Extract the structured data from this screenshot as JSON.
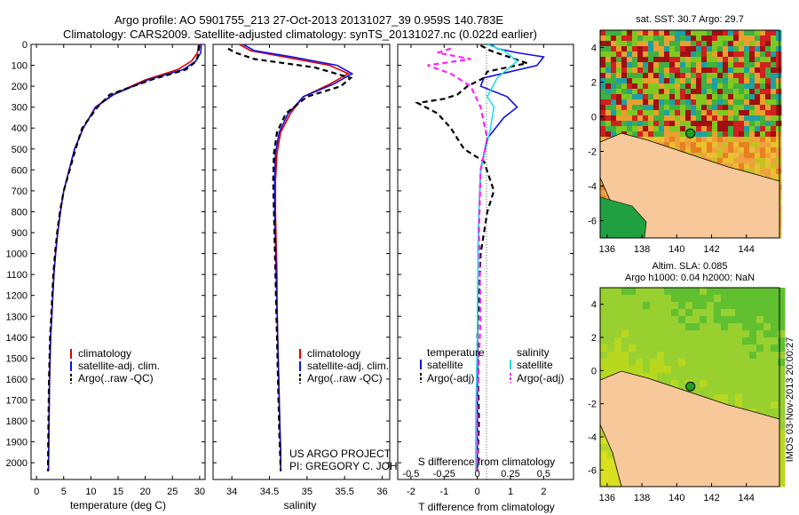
{
  "title_line1": "Argo profile: AO 5901755_213 27-Oct-2013 20131027_39 0.959S 140.783E",
  "title_line2": "Climatology: CARS2009. Satellite-adjusted climatology: synTS_20131027.nc (0.022d earlier)",
  "credit_line1": "US ARGO PROJECT",
  "credit_line2": "PI: GREGORY C. JOHNSON",
  "watermark": "IMOS 03-Nov-2013 20:00:27",
  "colors": {
    "climatology": "#e00000",
    "satellite": "#1010e0",
    "argo": "#000000",
    "sat_salinity": "#20e0e0",
    "argo_salinity": "#ff20ff"
  },
  "chart_data": [
    {
      "type": "line",
      "name": "temperature-panel",
      "xlabel": "temperature (deg C)",
      "ylabel": "",
      "xlim": [
        -1,
        31
      ],
      "ylim": [
        2080,
        0
      ],
      "xticks": [
        0,
        5,
        10,
        15,
        20,
        25,
        30
      ],
      "xtick_labels": [
        "0",
        "5",
        "10",
        "15",
        "20",
        "25",
        "30"
      ],
      "yticks": [
        0,
        100,
        200,
        300,
        400,
        500,
        600,
        700,
        800,
        900,
        1000,
        1100,
        1200,
        1300,
        1400,
        1500,
        1600,
        1700,
        1800,
        1900,
        2000
      ],
      "ytick_labels": [
        "0",
        "100",
        "200",
        "300",
        "400",
        "500",
        "600",
        "700",
        "800",
        "900",
        "1000",
        "1100",
        "1200",
        "1300",
        "1400",
        "1500",
        "1600",
        "1700",
        "1800",
        "1900",
        "2000"
      ],
      "legend": [
        "climatology",
        "satellite-adj. clim.",
        "Argo(..raw -QC)"
      ],
      "series": [
        {
          "name": "climatology",
          "style": "solid",
          "color_key": "climatology",
          "x": [
            29.8,
            29.6,
            28.5,
            26.0,
            20.0,
            14.0,
            10.8,
            8.6,
            7.0,
            6.0,
            5.0,
            4.4,
            3.9,
            3.5,
            3.2,
            3.0,
            2.8,
            2.6,
            2.5,
            2.4,
            2.3,
            2.2
          ],
          "y": [
            0,
            40,
            80,
            120,
            170,
            240,
            300,
            400,
            500,
            600,
            700,
            800,
            900,
            1000,
            1100,
            1200,
            1300,
            1400,
            1500,
            1600,
            1800,
            2040
          ]
        },
        {
          "name": "satellite-adj. clim.",
          "style": "solid",
          "color_key": "satellite",
          "x": [
            30.3,
            30.2,
            29.3,
            27.0,
            20.5,
            14.2,
            10.9,
            8.6,
            7.0,
            6.0,
            5.0,
            4.4,
            3.9,
            3.5,
            3.2,
            3.0,
            2.8,
            2.6,
            2.5,
            2.4,
            2.3,
            2.2
          ],
          "y": [
            0,
            40,
            80,
            120,
            170,
            240,
            300,
            400,
            500,
            600,
            700,
            800,
            900,
            1000,
            1100,
            1200,
            1300,
            1400,
            1500,
            1600,
            1800,
            2040
          ]
        },
        {
          "name": "Argo(..raw -QC)",
          "style": "dashed",
          "color_key": "argo",
          "x": [
            29.9,
            29.8,
            29.4,
            27.5,
            21.0,
            13.5,
            11.2,
            8.4,
            7.2,
            6.1,
            5.0,
            4.3,
            3.8,
            3.4,
            3.1,
            2.9,
            2.7,
            2.5,
            2.4,
            2.3,
            2.2,
            2.1
          ],
          "y": [
            5,
            40,
            80,
            120,
            170,
            240,
            300,
            400,
            500,
            600,
            700,
            800,
            900,
            1000,
            1100,
            1200,
            1300,
            1400,
            1500,
            1600,
            1800,
            2040
          ]
        }
      ]
    },
    {
      "type": "line",
      "name": "salinity-panel",
      "xlabel": "salinity",
      "xlim": [
        33.75,
        36.1
      ],
      "ylim": [
        2080,
        0
      ],
      "xticks": [
        34,
        34.5,
        35,
        35.5,
        36
      ],
      "xtick_labels": [
        "34",
        "34.5",
        "35",
        "35.5",
        "36"
      ],
      "legend": [
        "climatology",
        "satellite-adj. clim.",
        "Argo(..raw -QC)"
      ],
      "series": [
        {
          "name": "climatology",
          "style": "solid",
          "color_key": "climatology",
          "x": [
            34.1,
            34.25,
            34.7,
            35.3,
            35.55,
            35.3,
            34.95,
            34.78,
            34.65,
            34.6,
            34.58,
            34.58,
            34.59,
            34.6,
            34.6,
            34.61,
            34.62,
            34.63,
            34.64,
            34.65,
            34.65
          ],
          "y": [
            0,
            30,
            60,
            100,
            140,
            190,
            250,
            330,
            420,
            520,
            650,
            800,
            950,
            1100,
            1250,
            1400,
            1550,
            1700,
            1850,
            1950,
            2040
          ]
        },
        {
          "name": "satellite-adj. clim.",
          "style": "solid",
          "color_key": "satellite",
          "x": [
            34.15,
            34.3,
            34.8,
            35.4,
            35.6,
            35.35,
            34.95,
            34.75,
            34.63,
            34.58,
            34.57,
            34.57,
            34.58,
            34.59,
            34.6,
            34.61,
            34.62,
            34.63,
            34.64,
            34.65,
            34.65
          ],
          "y": [
            0,
            30,
            60,
            100,
            140,
            190,
            250,
            330,
            420,
            520,
            650,
            800,
            950,
            1100,
            1250,
            1400,
            1550,
            1700,
            1850,
            1950,
            2040
          ]
        },
        {
          "name": "Argo(..raw -QC)",
          "style": "dashed",
          "color_key": "argo",
          "x": [
            33.95,
            34.05,
            34.3,
            35.1,
            35.58,
            35.45,
            35.0,
            34.72,
            34.6,
            34.56,
            34.55,
            34.56,
            34.57,
            34.58,
            34.59,
            34.6,
            34.61,
            34.62,
            34.63,
            34.64,
            34.65
          ],
          "y": [
            20,
            40,
            70,
            110,
            160,
            200,
            250,
            330,
            420,
            520,
            650,
            800,
            950,
            1100,
            1250,
            1400,
            1550,
            1700,
            1850,
            1950,
            2040
          ]
        }
      ]
    },
    {
      "type": "line",
      "name": "difference-panel",
      "xlabel": "T difference from climatology",
      "xlabel_top": "S difference from climatology",
      "xlim": [
        -2.4,
        2.9
      ],
      "ylim": [
        2080,
        0
      ],
      "xticks": [
        -2,
        -1,
        0,
        1,
        2
      ],
      "xtick_labels": [
        "-2",
        "-1",
        "0",
        "1",
        "2"
      ],
      "sticks": [
        -2,
        -1,
        0,
        1,
        2
      ],
      "stick_labels": [
        "-0.5",
        "-0.25",
        "0",
        "0.25",
        "0.5"
      ],
      "legend": [
        "temperature",
        "satellite",
        "Argo(-adj)",
        "salinity",
        "satellite",
        "Argo(-adj)"
      ],
      "series": [
        {
          "name": "temperature satellite",
          "style": "solid",
          "color_key": "satellite",
          "x": [
            0.4,
            0.6,
            1.2,
            2.0,
            1.8,
            0.2,
            0.1,
            0.9,
            1.2,
            0.8,
            0.3,
            0.1,
            0.05,
            0.02,
            0.01,
            0.0,
            0.0
          ],
          "y": [
            0,
            20,
            40,
            60,
            100,
            160,
            200,
            250,
            300,
            350,
            450,
            600,
            800,
            1000,
            1400,
            1800,
            2040
          ]
        },
        {
          "name": "temperature Argo(-adj)",
          "style": "dashed",
          "color_key": "argo",
          "x": [
            0.1,
            0.4,
            1.5,
            0.3,
            0.2,
            -0.3,
            -0.6,
            -1.0,
            -1.8,
            -1.2,
            -0.8,
            -0.4,
            0.2,
            0.5,
            0.3,
            0.1,
            0.0,
            0.05,
            0.0
          ],
          "y": [
            5,
            30,
            90,
            130,
            160,
            200,
            240,
            260,
            280,
            330,
            400,
            500,
            560,
            700,
            800,
            1000,
            1400,
            1800,
            2040
          ]
        },
        {
          "name": "salinity satellite",
          "style": "solid",
          "color_key": "sat_salinity",
          "x": [
            0.3,
            0.8,
            1.2,
            0.6,
            0.3,
            0.5,
            0.4,
            0.1,
            0.05,
            0.02,
            0.0,
            -0.05,
            -0.05
          ],
          "y": [
            0,
            30,
            80,
            160,
            250,
            300,
            400,
            600,
            800,
            1000,
            1400,
            1800,
            2040
          ]
        },
        {
          "name": "salinity Argo(-adj)",
          "style": "dashed",
          "color_key": "argo_salinity",
          "x": [
            -0.8,
            -1.2,
            -0.2,
            -1.5,
            -0.8,
            -0.2,
            0.1,
            0.3,
            0.1,
            0.05,
            0.1,
            0.0,
            0.0
          ],
          "y": [
            20,
            40,
            70,
            100,
            140,
            200,
            300,
            450,
            600,
            900,
            1300,
            1700,
            2040
          ]
        }
      ]
    },
    {
      "type": "heatmap",
      "name": "sst-map",
      "title": "sat. SST: 30.7  Argo: 29.7",
      "xlim": [
        135.6,
        145.9
      ],
      "ylim": [
        -7,
        5
      ],
      "xticks": [
        136,
        138,
        140,
        142,
        144
      ],
      "xtick_labels": [
        "136",
        "138",
        "140",
        "142",
        "144"
      ],
      "yticks": [
        -6,
        -4,
        -2,
        0,
        2,
        4
      ],
      "ytick_labels": [
        "-6",
        "-4",
        "-2",
        "0",
        "2",
        "4"
      ],
      "marker": {
        "lon": 140.783,
        "lat": -0.959
      }
    },
    {
      "type": "heatmap",
      "name": "sla-map",
      "title_line1": "Altim. SLA: 0.085",
      "title_line2": "Argo h1000: 0.04 h2000: NaN",
      "xlim": [
        135.6,
        145.9
      ],
      "ylim": [
        -7,
        5
      ],
      "xticks": [
        136,
        138,
        140,
        142,
        144
      ],
      "xtick_labels": [
        "136",
        "138",
        "140",
        "142",
        "144"
      ],
      "yticks": [
        -6,
        -4,
        -2,
        0,
        2,
        4
      ],
      "ytick_labels": [
        "-6",
        "-4",
        "-2",
        "0",
        "2",
        "4"
      ],
      "marker": {
        "lon": 140.783,
        "lat": -0.959
      }
    }
  ]
}
